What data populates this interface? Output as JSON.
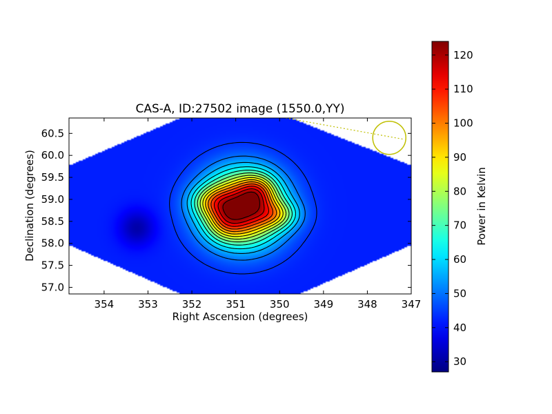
{
  "chart_data": {
    "type": "heatmap",
    "title": "CAS-A, ID:27502 image (1550.0,YY)",
    "xlabel": "Right Ascension (degrees)",
    "ylabel": "Declination (degrees)",
    "xlim": [
      354.8,
      347.0
    ],
    "ylim": [
      56.85,
      60.85
    ],
    "x_reversed": true,
    "x_ticks": [
      354,
      353,
      352,
      351,
      350,
      349,
      348,
      347
    ],
    "y_ticks": [
      57.0,
      57.5,
      58.0,
      58.5,
      59.0,
      59.5,
      60.0,
      60.5
    ],
    "colormap": "jet",
    "colorbar": {
      "label": "Power in Kelvin",
      "min": 27,
      "max": 124,
      "ticks": [
        30,
        40,
        50,
        60,
        70,
        80,
        90,
        100,
        110,
        120
      ]
    },
    "background_level": 42,
    "sources": [
      {
        "ra": 350.85,
        "dec": 58.8,
        "peak": 80,
        "sigma_ra": 0.6,
        "sigma_dec": 0.55
      },
      {
        "ra": 351.55,
        "dec": 58.95,
        "peak": 22,
        "sigma_ra": 0.33,
        "sigma_dec": 0.24
      },
      {
        "ra": 350.5,
        "dec": 59.2,
        "peak": 22,
        "sigma_ra": 0.28,
        "sigma_dec": 0.26
      },
      {
        "ra": 351.25,
        "dec": 58.45,
        "peak": 14,
        "sigma_ra": 0.28,
        "sigma_dec": 0.26
      },
      {
        "ra": 350.05,
        "dec": 58.65,
        "peak": 22,
        "sigma_ra": 0.33,
        "sigma_dec": 0.22
      },
      {
        "ra": 353.25,
        "dec": 58.35,
        "peak": -11,
        "sigma_ra": 0.28,
        "sigma_dec": 0.28
      }
    ],
    "contour_levels": [
      44,
      50,
      56,
      62,
      68,
      74,
      80,
      86,
      92,
      98,
      104,
      110,
      116,
      122
    ],
    "beam": {
      "ra": 347.5,
      "dec": 60.4,
      "color": "#bfbf00",
      "style": "circle"
    },
    "colors": {
      "contour": "#000000",
      "beam": "#bfbf00"
    }
  }
}
